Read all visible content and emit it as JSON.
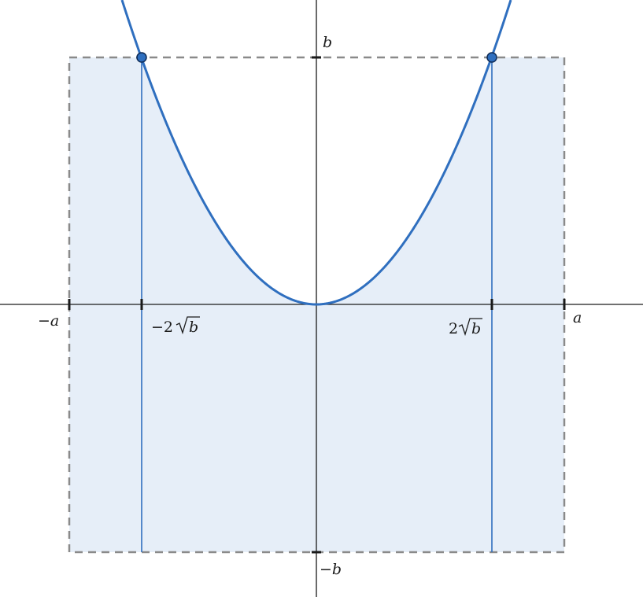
{
  "colors": {
    "curve": "#2f6fbf",
    "region_fill": "#e6eef8",
    "rect_border": "#8a8a8a",
    "axis": "#1a1a1a",
    "point_fill": "#2f6fbf",
    "point_stroke": "#0d2a55",
    "vertical_line": "#2f6fbf"
  },
  "labels": {
    "neg_a": "−a",
    "a": "a",
    "neg_two_sqrt_b_prefix": "−2",
    "two_sqrt_b_prefix": "2",
    "sqrt_arg": "b",
    "b": "b",
    "neg_b": "−b"
  }
}
